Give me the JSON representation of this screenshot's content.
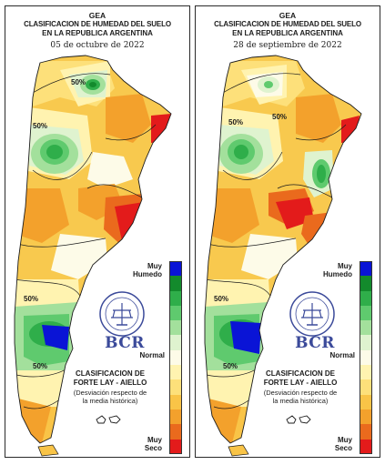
{
  "panels": [
    {
      "org": "GEA",
      "title_line1": "CLASIFICACION DE HUMEDAD DEL SUELO",
      "title_line2": "EN LA REPUBLICA ARGENTINA",
      "date": "05 de octubre de 2022",
      "contour_labels": [
        "50%",
        "50%",
        "50%",
        "50%"
      ],
      "legend_top": "Muy\nHumedo",
      "legend_mid": "Normal",
      "legend_bottom": "Muy\nSeco",
      "logo_text": "BCR",
      "classification_line1": "CLASIFICACION DE",
      "classification_line2": "FORTE LAY - AIELLO",
      "classification_line3": "(Desviación respecto de",
      "classification_line4": "la media histórica)"
    },
    {
      "org": "GEA",
      "title_line1": "CLASIFICACION DE HUMEDAD DEL SUELO",
      "title_line2": "EN LA REPUBLICA ARGENTINA",
      "date": "28 de septiembre de 2022",
      "contour_labels": [
        "50%",
        "50%",
        "50%",
        "50%"
      ],
      "legend_top": "Muy\nHumedo",
      "legend_mid": "Normal",
      "legend_bottom": "Muy\nSeco",
      "logo_text": "BCR",
      "classification_line1": "CLASIFICACION DE",
      "classification_line2": "FORTE LAY - AIELLO",
      "classification_line3": "(Desviación respecto de",
      "classification_line4": "la media histórica)"
    }
  ],
  "legend_colors": [
    "#0a14d6",
    "#138a2c",
    "#2fae4a",
    "#5fca6e",
    "#a3e09c",
    "#dff3cf",
    "#fdfbe8",
    "#fff3b0",
    "#fde07a",
    "#f9c447",
    "#f3a12c",
    "#ea6a1d",
    "#e31b1b"
  ],
  "colors": {
    "very_wet": "#0a14d6",
    "normal": "#fdfbe8",
    "very_dry": "#e31b1b",
    "logo": "#3b4a9a"
  }
}
